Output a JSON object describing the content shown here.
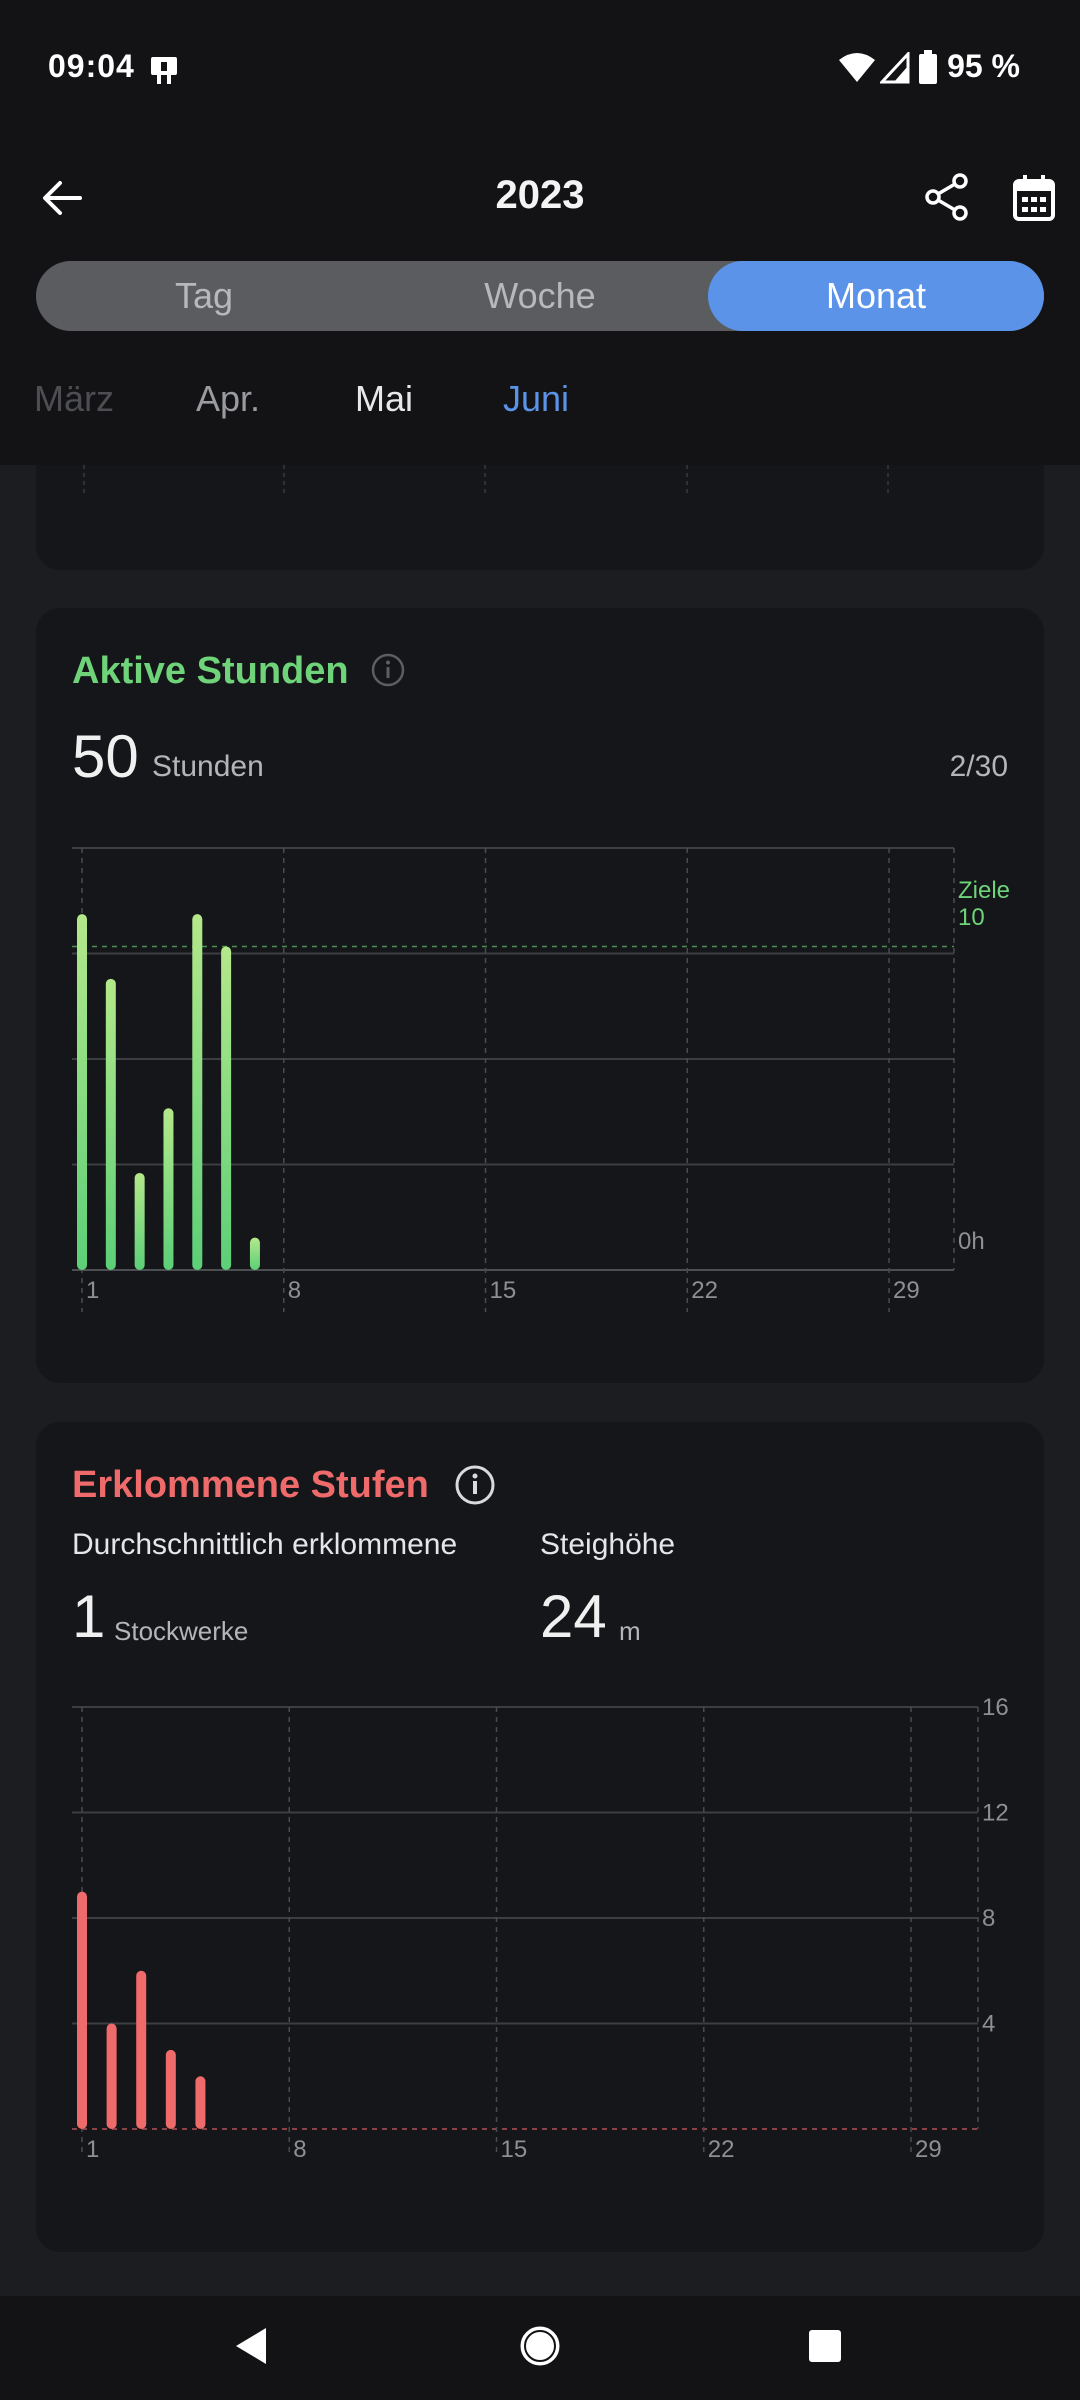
{
  "status": {
    "time": "09:04",
    "battery": "95 %"
  },
  "header": {
    "title": "2023"
  },
  "segments": [
    {
      "label": "Tag"
    },
    {
      "label": "Woche"
    },
    {
      "label": "Monat"
    }
  ],
  "months": [
    {
      "label": "März"
    },
    {
      "label": "Apr."
    },
    {
      "label": "Mai"
    },
    {
      "label": "Juni"
    }
  ],
  "active_hours": {
    "title": "Aktive Stunden",
    "value": "50",
    "unit": "Stunden",
    "goal_ratio": "2/30",
    "goal_label": "Ziele",
    "goal_value": "10",
    "zero_label": "0h",
    "color": "#6fd37a"
  },
  "steps": {
    "title": "Erklommene Stufen",
    "avg_label": "Durchschnittlich erklommene",
    "avg_value": "1",
    "avg_unit": "Stockwerke",
    "height_label": "Steighöhe",
    "height_value": "24",
    "height_unit": "m",
    "color": "#ef6b6b"
  },
  "chart_data": [
    {
      "type": "bar",
      "title": "Aktive Stunden",
      "categories": [
        1,
        2,
        3,
        4,
        5,
        6,
        7,
        8,
        9,
        10,
        11,
        12,
        13,
        14,
        15,
        16,
        17,
        18,
        19,
        20,
        21,
        22,
        23,
        24,
        25,
        26,
        27,
        28,
        29,
        30
      ],
      "values": [
        11,
        9,
        3,
        5,
        11,
        10,
        1,
        0,
        0,
        0,
        0,
        0,
        0,
        0,
        0,
        0,
        0,
        0,
        0,
        0,
        0,
        0,
        0,
        0,
        0,
        0,
        0,
        0,
        0,
        0
      ],
      "xtick_labels": [
        "1",
        "8",
        "15",
        "22",
        "29"
      ],
      "goal": 10,
      "ylim": [
        0,
        12
      ]
    },
    {
      "type": "bar",
      "title": "Erklommene Stufen",
      "categories": [
        1,
        2,
        3,
        4,
        5,
        6,
        7,
        8,
        9,
        10,
        11,
        12,
        13,
        14,
        15,
        16,
        17,
        18,
        19,
        20,
        21,
        22,
        23,
        24,
        25,
        26,
        27,
        28,
        29,
        30
      ],
      "values": [
        9,
        4,
        6,
        3,
        2,
        0,
        0,
        0,
        0,
        0,
        0,
        0,
        0,
        0,
        0,
        0,
        0,
        0,
        0,
        0,
        0,
        0,
        0,
        0,
        0,
        0,
        0,
        0,
        0,
        0
      ],
      "xtick_labels": [
        "1",
        "8",
        "15",
        "22",
        "29"
      ],
      "yticks": [
        4,
        8,
        12,
        16
      ],
      "ylim": [
        0,
        16
      ]
    }
  ]
}
